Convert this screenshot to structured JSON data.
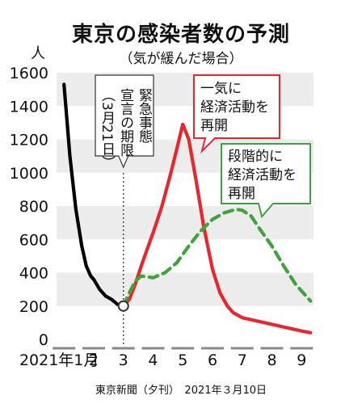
{
  "chart_data": {
    "type": "line",
    "title": "東京の感染者数の予測",
    "subtitle": "（気が緩んだ場合）",
    "ylabel": "人",
    "ylim": [
      0,
      1600
    ],
    "yticks": [
      0,
      200,
      400,
      600,
      800,
      1000,
      1200,
      1400,
      1600
    ],
    "xlim": [
      0.75,
      9.4
    ],
    "xticks": [
      {
        "x": 1,
        "label": "2021年1月"
      },
      {
        "x": 2,
        "label": "2"
      },
      {
        "x": 3,
        "label": "3"
      },
      {
        "x": 4,
        "label": "4"
      },
      {
        "x": 5,
        "label": "5"
      },
      {
        "x": 6,
        "label": "6"
      },
      {
        "x": 7,
        "label": "7"
      },
      {
        "x": 8,
        "label": "8"
      },
      {
        "x": 9,
        "label": "9"
      }
    ],
    "grid": "horizontal bands",
    "series": [
      {
        "color": "#000000",
        "style": "solid",
        "x": [
          1.0,
          1.2,
          1.4,
          1.6,
          1.75,
          1.9,
          2.0,
          2.2,
          2.4,
          2.6,
          2.8,
          3.0
        ],
        "y": [
          1530,
          1100,
          780,
          560,
          440,
          380,
          360,
          300,
          260,
          240,
          210,
          200
        ]
      },
      {
        "color": "#e8262b",
        "style": "solid",
        "x": [
          3.0,
          3.2,
          3.4,
          3.6,
          3.8,
          4.0,
          4.3,
          4.6,
          4.85,
          5.0,
          5.2,
          5.45,
          5.7,
          6.0,
          6.25,
          6.5,
          6.7,
          7.0,
          7.5,
          8.0,
          8.5,
          9.0,
          9.3
        ],
        "y": [
          200,
          240,
          330,
          440,
          540,
          640,
          800,
          1000,
          1180,
          1290,
          1200,
          950,
          680,
          420,
          280,
          200,
          160,
          130,
          110,
          90,
          70,
          50,
          40
        ]
      },
      {
        "color": "#3fa33b",
        "style": "dashed",
        "x": [
          3.0,
          3.2,
          3.4,
          3.6,
          4.0,
          4.4,
          4.8,
          5.2,
          5.6,
          6.0,
          6.4,
          6.8,
          7.0,
          7.3,
          7.6,
          8.0,
          8.4,
          8.8,
          9.3
        ],
        "y": [
          200,
          280,
          350,
          380,
          370,
          400,
          460,
          560,
          650,
          720,
          760,
          780,
          775,
          740,
          660,
          560,
          440,
          330,
          230
        ]
      }
    ],
    "marker": {
      "x": 3,
      "y": 200
    },
    "annotations": {
      "emergency": "緊急事態宣言の期限（3月21日）",
      "emergency_lines": [
        "緊急事態",
        "宣言の期限",
        "（3月21日）"
      ],
      "full_reopen": [
        "一気に",
        "経済活動を",
        "再開"
      ],
      "phased_reopen": [
        "段階的に",
        "経済活動を",
        "再開"
      ]
    },
    "colors": {
      "black_series": "#000000",
      "red_series": "#e8262b",
      "green_series": "#3fa33b",
      "band": "#ececec"
    },
    "source": "東京新聞（夕刊）　2021年３月10日"
  }
}
